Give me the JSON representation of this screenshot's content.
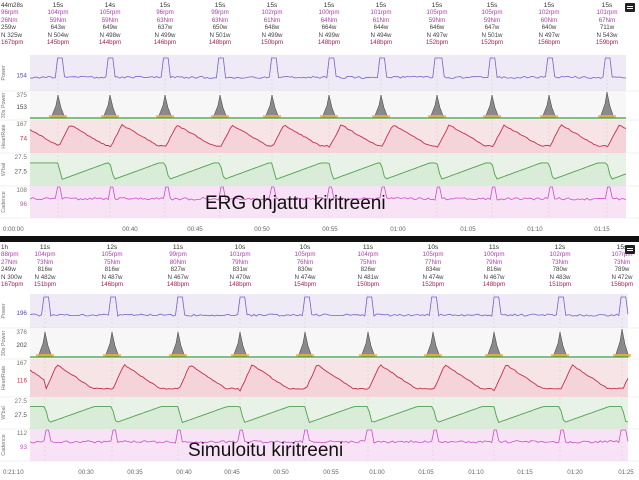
{
  "top": {
    "summary": {
      "time": "44m28s",
      "rpm": "96rpm",
      "nm": "26Nm",
      "w": "259w",
      "n": "N 325w",
      "bpm": "167bpm"
    },
    "intervals": [
      {
        "dur": "15s",
        "rpm": "104rpm",
        "nm": "59Nm",
        "w": "643w",
        "n": "N 504w",
        "bpm": "145bpm"
      },
      {
        "dur": "14s",
        "rpm": "105rpm",
        "nm": "59Nm",
        "w": "649w",
        "n": "N 498w",
        "bpm": "144bpm"
      },
      {
        "dur": "15s",
        "rpm": "96rpm",
        "nm": "63Nm",
        "w": "637w",
        "n": "N 499w",
        "bpm": "146bpm"
      },
      {
        "dur": "15s",
        "rpm": "99rpm",
        "nm": "63Nm",
        "w": "650w",
        "n": "N 501w",
        "bpm": "148bpm"
      },
      {
        "dur": "15s",
        "rpm": "102rpm",
        "nm": "61Nm",
        "w": "648w",
        "n": "N 499w",
        "bpm": "150bpm"
      },
      {
        "dur": "15s",
        "rpm": "100rpm",
        "nm": "64Nm",
        "w": "664w",
        "n": "N 499w",
        "bpm": "148bpm"
      },
      {
        "dur": "15s",
        "rpm": "101rpm",
        "nm": "61Nm",
        "w": "644w",
        "n": "N 494w",
        "bpm": "148bpm"
      },
      {
        "dur": "15s",
        "rpm": "105rpm",
        "nm": "59Nm",
        "w": "646w",
        "n": "N 497w",
        "bpm": "152bpm"
      },
      {
        "dur": "15s",
        "rpm": "105rpm",
        "nm": "59Nm",
        "w": "647w",
        "n": "N 501w",
        "bpm": "152bpm"
      },
      {
        "dur": "15s",
        "rpm": "102rpm",
        "nm": "60Nm",
        "w": "640w",
        "n": "N 497w",
        "bpm": "156bpm"
      },
      {
        "dur": "15s",
        "rpm": "101rpm",
        "nm": "67Nm",
        "w": "711w",
        "n": "N 543w",
        "bpm": "159bpm"
      }
    ],
    "tracks": [
      {
        "label": "Power",
        "value": "154"
      },
      {
        "label": "30s Power",
        "value_top": "375",
        "value": "153"
      },
      {
        "label": "HeartRate",
        "value_top": "167",
        "value": "74"
      },
      {
        "label": "W'bal",
        "value_top": "27.5",
        "value": "27.5"
      },
      {
        "label": "Cadence",
        "value_top": "108",
        "value": "96"
      }
    ],
    "time_labels": [
      "0:00:00",
      "00:40",
      "00:45",
      "00:50",
      "00:55",
      "01:00",
      "01:05",
      "01:10",
      "01:15"
    ],
    "title": "ERG ohjattu kiritreeni"
  },
  "bottom": {
    "summary": {
      "time": "1h",
      "rpm": "88rpm",
      "nm": "27Nm",
      "w": "249w",
      "n": "N 300w",
      "bpm": "167bpm"
    },
    "intervals": [
      {
        "dur": "11s",
        "rpm": "104rpm",
        "nm": "73Nm",
        "w": "816w",
        "n": "N 482w",
        "bpm": "151bpm"
      },
      {
        "dur": "12s",
        "rpm": "105rpm",
        "nm": "75Nm",
        "w": "816w",
        "n": "N 487w",
        "bpm": "146bpm"
      },
      {
        "dur": "11s",
        "rpm": "99rpm",
        "nm": "80Nm",
        "w": "827w",
        "n": "N 467w",
        "bpm": "148bpm"
      },
      {
        "dur": "10s",
        "rpm": "101rpm",
        "nm": "79Nm",
        "w": "831w",
        "n": "N 470w",
        "bpm": "148bpm"
      },
      {
        "dur": "10s",
        "rpm": "105rpm",
        "nm": "76Nm",
        "w": "830w",
        "n": "N 474w",
        "bpm": "154bpm"
      },
      {
        "dur": "11s",
        "rpm": "104rpm",
        "nm": "75Nm",
        "w": "826w",
        "n": "N 481w",
        "bpm": "150bpm"
      },
      {
        "dur": "10s",
        "rpm": "105rpm",
        "nm": "77Nm",
        "w": "834w",
        "n": "N 474w",
        "bpm": "152bpm"
      },
      {
        "dur": "11s",
        "rpm": "100rpm",
        "nm": "79Nm",
        "w": "816w",
        "n": "N 467w",
        "bpm": "148bpm"
      },
      {
        "dur": "12s",
        "rpm": "102rpm",
        "nm": "73Nm",
        "w": "780w",
        "n": "N 483w",
        "bpm": "151bpm"
      },
      {
        "dur": "15s",
        "rpm": "107rpm",
        "nm": "73Nm",
        "w": "789w",
        "n": "N 472w",
        "bpm": "156bpm"
      }
    ],
    "tracks": [
      {
        "label": "Power",
        "value": "196"
      },
      {
        "label": "30s Power",
        "value_top": "376",
        "value": "202"
      },
      {
        "label": "HeartRate",
        "value_top": "167",
        "value": "116"
      },
      {
        "label": "W'bal",
        "value_top": "27.5",
        "value": "27.5"
      },
      {
        "label": "Cadence",
        "value_top": "112",
        "value": "93"
      }
    ],
    "time_labels": [
      "0:21:10",
      "00:30",
      "00:35",
      "00:40",
      "00:45",
      "00:50",
      "00:55",
      "01:00",
      "01:05",
      "01:10",
      "01:15",
      "01:20",
      "01:25"
    ],
    "title": "Simuloitu kiritreeni"
  },
  "colors": {
    "power": "#7b5fc9",
    "thirty": "#3e3e3e",
    "heart": "#c62f48",
    "wbal": "#4fa04f",
    "cadence": "#c84fc8",
    "rpm_text": "#b03ab0",
    "bpm_text": "#b0205a",
    "power_value": "#5a49b0",
    "heart_value": "#c62f48",
    "cadence_value": "#c84fc8"
  }
}
